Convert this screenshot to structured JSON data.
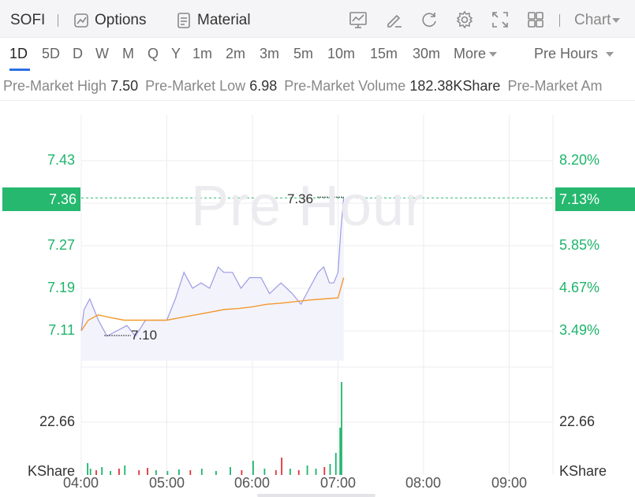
{
  "toolbar": {
    "symbol": "SOFI",
    "options_label": "Options",
    "material_label": "Material",
    "chart_label": "Chart",
    "icons": [
      "indicator-icon",
      "draw-icon",
      "refresh-icon",
      "settings-icon",
      "fullscreen-icon",
      "layout-icon"
    ]
  },
  "periods": {
    "items": [
      "1D",
      "5D",
      "D",
      "W",
      "M",
      "Q",
      "Y",
      "1m",
      "2m",
      "3m",
      "5m",
      "10m",
      "15m",
      "30m"
    ],
    "active": "1D",
    "more_label": "More",
    "session_label": "Pre Hours"
  },
  "stats": {
    "high_label": "Pre-Market High",
    "high_value": "7.50",
    "low_label": "Pre-Market Low",
    "low_value": "6.98",
    "volume_label": "Pre-Market Volume",
    "volume_value": "182.38KShare",
    "amount_label": "Pre-Market Am"
  },
  "chart": {
    "watermark": "Pre Hour",
    "current_price": "7.36",
    "current_change": "7.13%",
    "high_marker": "7.36",
    "low_marker": "7.10",
    "price_ticks": [
      "7.43",
      "7.27",
      "7.19",
      "7.11"
    ],
    "percent_ticks": [
      "8.20%",
      "5.85%",
      "4.67%",
      "3.49%"
    ],
    "volume_tick": "22.66",
    "volume_unit": "KShare",
    "time_ticks": [
      "04:00",
      "05:00",
      "06:00",
      "07:00",
      "08:00",
      "09:00"
    ],
    "colors": {
      "up": "#1fb46b",
      "down": "#e0323a",
      "price_line": "#9b9be6",
      "avg_line": "#f39a2c",
      "grid": "#ececf0"
    }
  },
  "chart_data": {
    "type": "line",
    "x": [
      "04:00",
      "05:00",
      "06:00",
      "07:00",
      "08:00",
      "09:00"
    ],
    "series": [
      {
        "values": [
          [
            0,
            7.11
          ],
          [
            2,
            7.15
          ],
          [
            6,
            7.17
          ],
          [
            12,
            7.13
          ],
          [
            18,
            7.1
          ],
          [
            25,
            7.11
          ],
          [
            32,
            7.12
          ],
          [
            38,
            7.1
          ],
          [
            45,
            7.13
          ],
          [
            50,
            7.13
          ],
          [
            55,
            7.13
          ],
          [
            60,
            7.13
          ],
          [
            66,
            7.17
          ],
          [
            72,
            7.22
          ],
          [
            78,
            7.19
          ],
          [
            84,
            7.2
          ],
          [
            90,
            7.19
          ],
          [
            96,
            7.23
          ],
          [
            100,
            7.22
          ],
          [
            106,
            7.22
          ],
          [
            112,
            7.19
          ],
          [
            118,
            7.21
          ],
          [
            126,
            7.21
          ],
          [
            132,
            7.18
          ],
          [
            140,
            7.2
          ],
          [
            148,
            7.18
          ],
          [
            154,
            7.16
          ],
          [
            160,
            7.19
          ],
          [
            166,
            7.22
          ],
          [
            170,
            7.23
          ],
          [
            174,
            7.2
          ],
          [
            177,
            7.2
          ],
          [
            180,
            7.22
          ],
          [
            182,
            7.3
          ],
          [
            184,
            7.36
          ]
        ]
      },
      {
        "values": [
          [
            0,
            7.11
          ],
          [
            5,
            7.13
          ],
          [
            12,
            7.14
          ],
          [
            20,
            7.135
          ],
          [
            30,
            7.13
          ],
          [
            40,
            7.13
          ],
          [
            50,
            7.13
          ],
          [
            60,
            7.13
          ],
          [
            70,
            7.135
          ],
          [
            80,
            7.14
          ],
          [
            90,
            7.145
          ],
          [
            100,
            7.15
          ],
          [
            110,
            7.152
          ],
          [
            120,
            7.155
          ],
          [
            130,
            7.16
          ],
          [
            140,
            7.162
          ],
          [
            150,
            7.165
          ],
          [
            160,
            7.168
          ],
          [
            170,
            7.17
          ],
          [
            180,
            7.172
          ],
          [
            184,
            7.21
          ]
        ]
      }
    ],
    "ylim": [
      7.04,
      7.52
    ]
  }
}
